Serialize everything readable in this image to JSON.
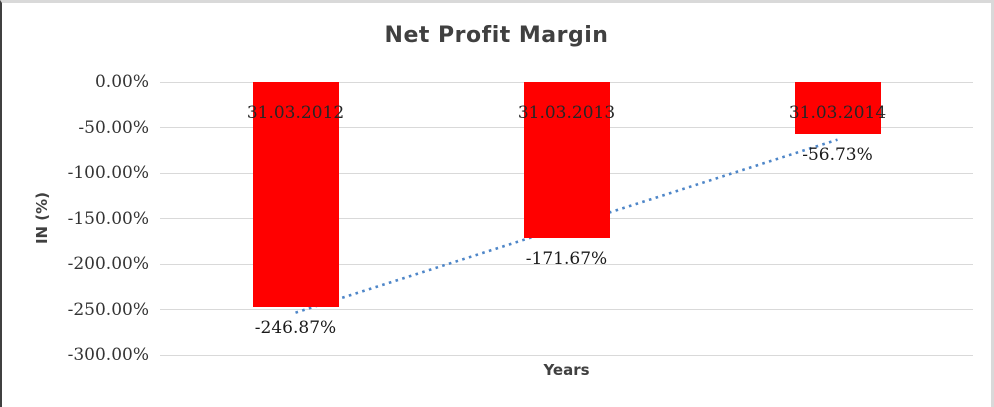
{
  "chart_data": {
    "type": "bar",
    "title": "Net Profit Margin",
    "xlabel": "Years",
    "ylabel": "IN (%)",
    "categories": [
      "31.03.2012",
      "31.03.2013",
      "31.03.2014"
    ],
    "values": [
      -246.87,
      -171.67,
      -56.73
    ],
    "value_labels": [
      "-246.87%",
      "-171.67%",
      "-56.73%"
    ],
    "ylim": [
      -300,
      0
    ],
    "yticks": [
      0,
      -50,
      -100,
      -150,
      -200,
      -250,
      -300
    ],
    "ytick_labels": [
      "0.00%",
      "-50.00%",
      "-100.00%",
      "-150.00%",
      "-200.00%",
      "-250.00%",
      "-300.00%"
    ],
    "grid": true,
    "legend": "none",
    "bar_color": "#FF0000",
    "gridline_color": "#D9D9D9",
    "trendline": {
      "type": "linear",
      "style": "dotted",
      "color": "#4E86C8",
      "start_value": -253.5,
      "end_value": -63.4
    }
  }
}
